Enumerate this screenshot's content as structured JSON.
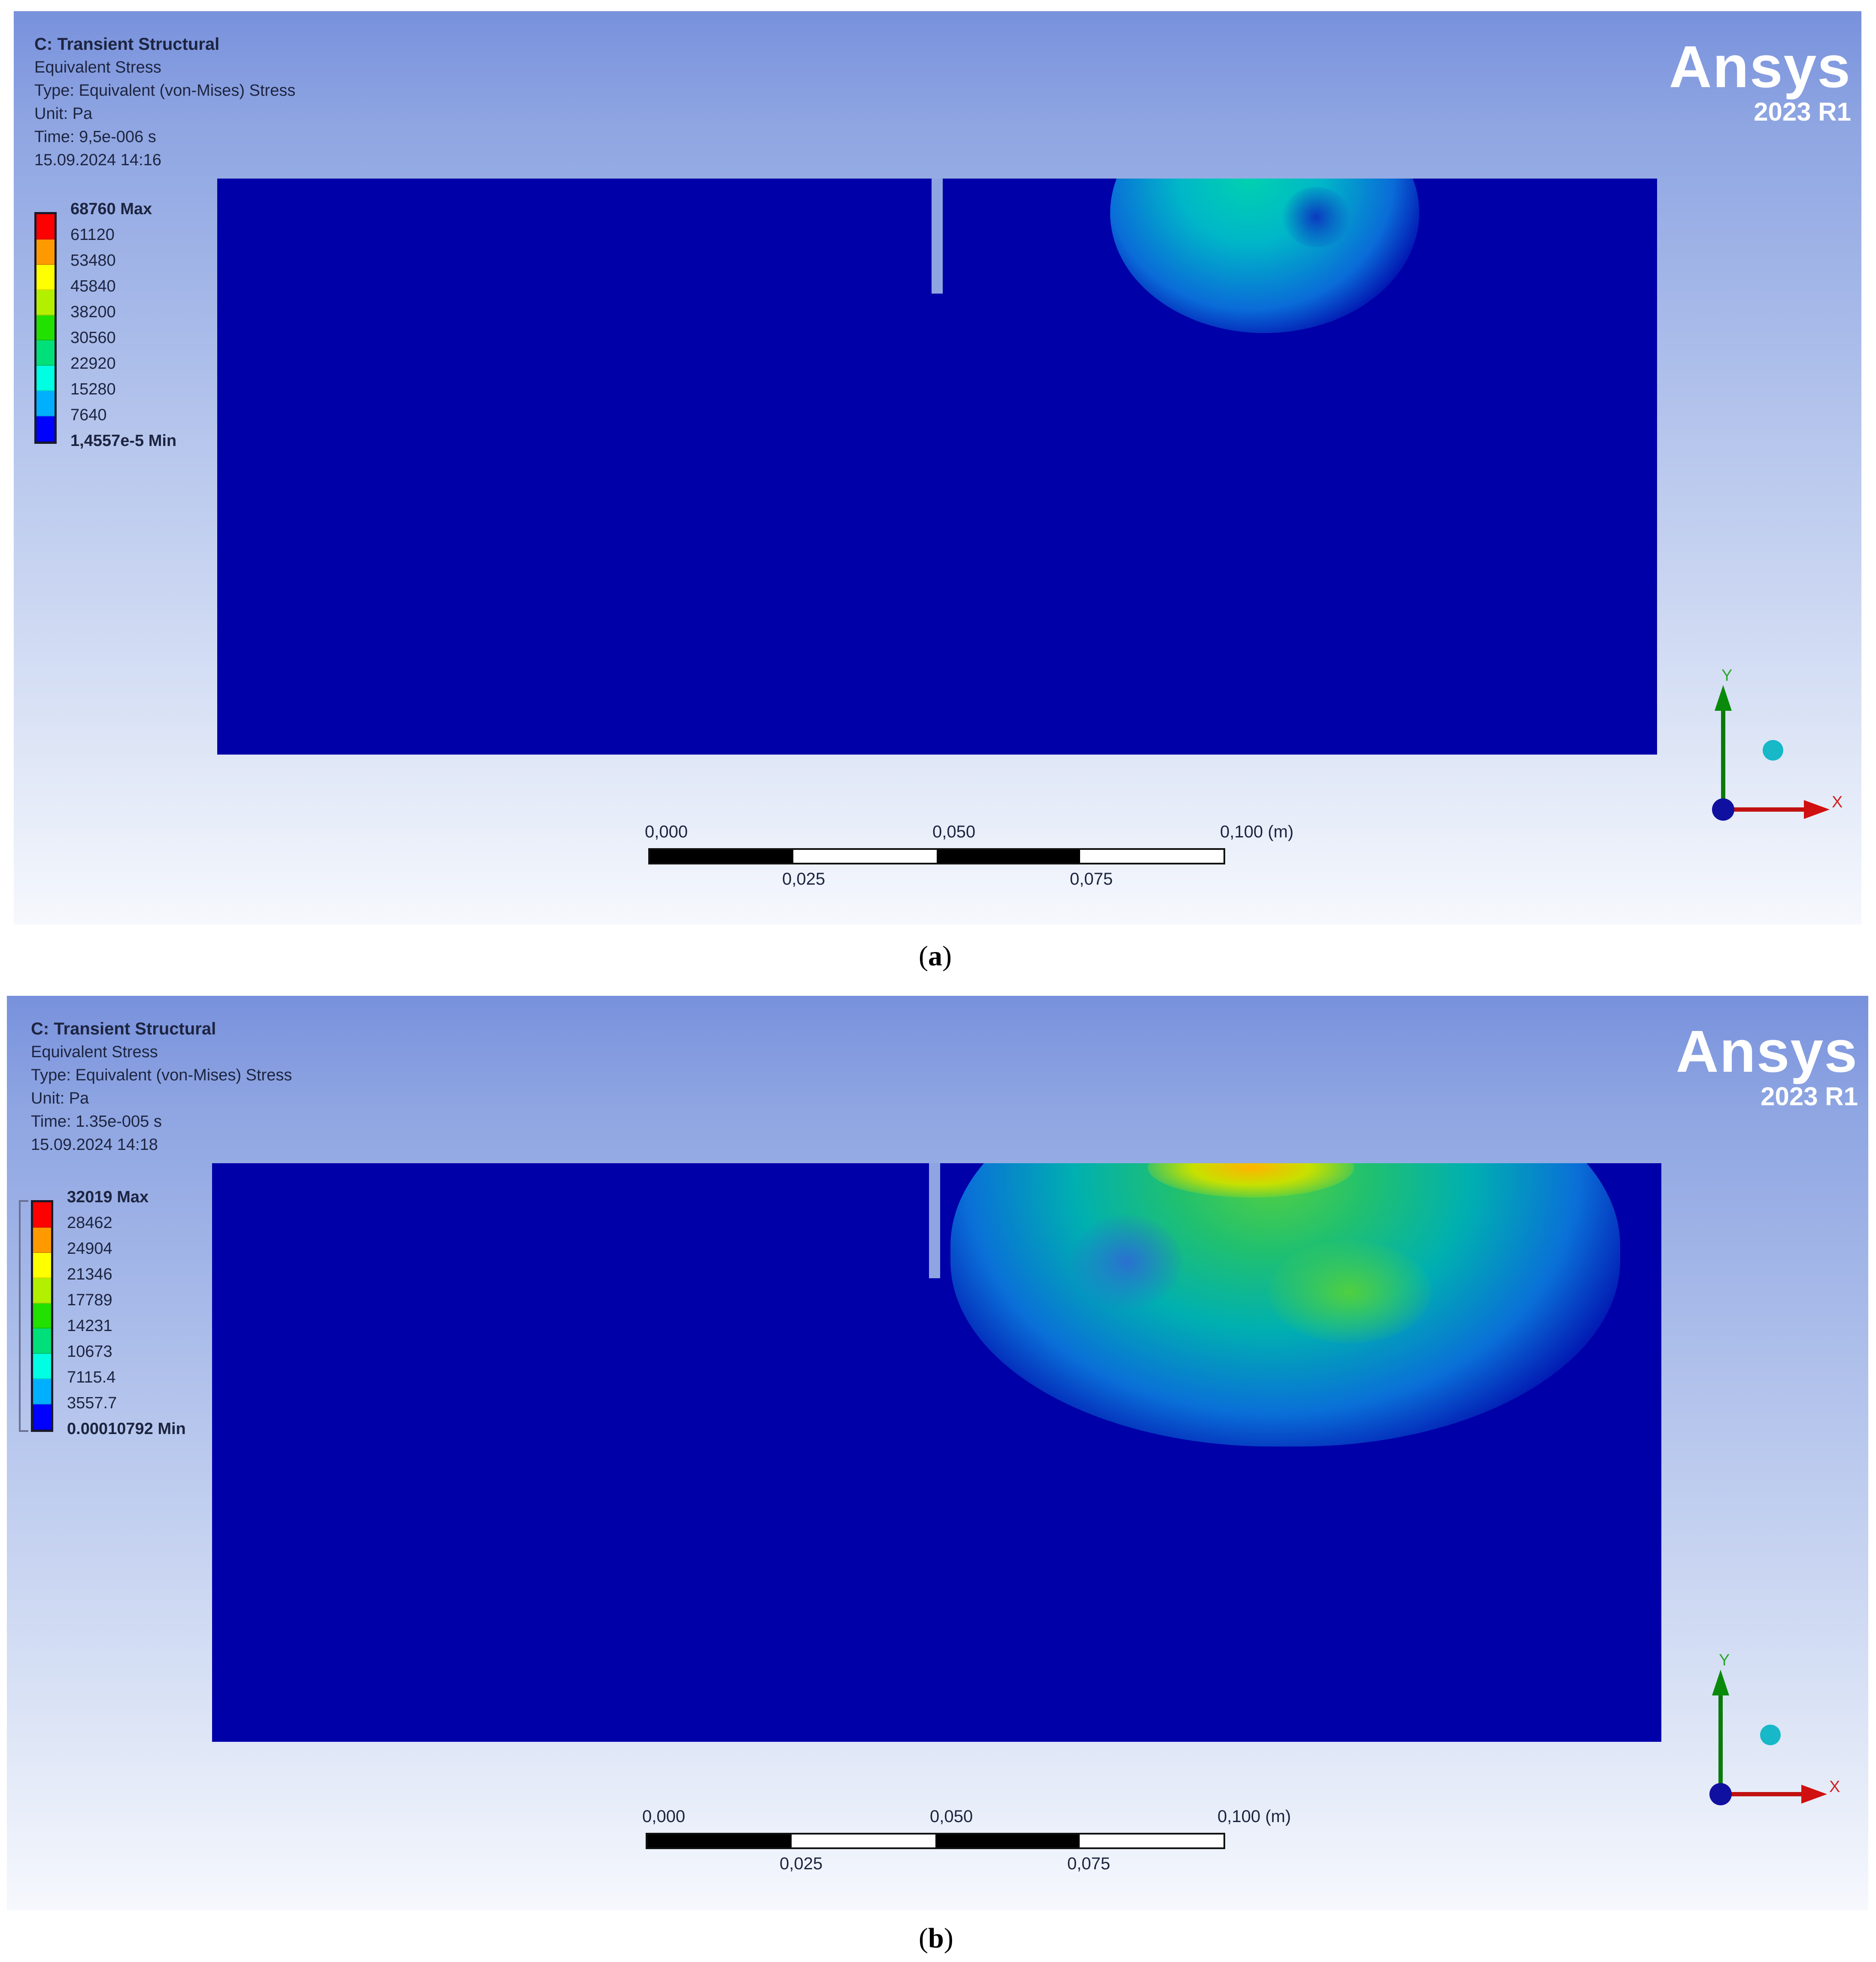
{
  "panels": [
    {
      "caption_letter": "a",
      "info": {
        "title": "C: Transient Structural",
        "result": "Equivalent Stress",
        "type": "Type: Equivalent (von-Mises) Stress",
        "unit": "Unit: Pa",
        "time": "Time: 9,5e-006 s",
        "date": "15.09.2024 14:16"
      },
      "legend": [
        "68760 Max",
        "61120",
        "53480",
        "45840",
        "38200",
        "30560",
        "22920",
        "15280",
        "7640",
        "1,4557e-5 Min"
      ],
      "scale": {
        "t0": "0,000",
        "t1": "0,025",
        "t2": "0,050",
        "t3": "0,075",
        "t4": "0,100 (m)"
      },
      "triad": {
        "x": "X",
        "y": "Y"
      }
    },
    {
      "caption_letter": "b",
      "info": {
        "title": "C: Transient Structural",
        "result": "Equivalent Stress",
        "type": "Type: Equivalent (von-Mises) Stress",
        "unit": "Unit: Pa",
        "time": "Time: 1.35e-005 s",
        "date": "15.09.2024 14:18"
      },
      "legend": [
        "32019 Max",
        "28462",
        "24904",
        "21346",
        "17789",
        "14231",
        "10673",
        "7115.4",
        "3557.7",
        "0.00010792 Min"
      ],
      "scale": {
        "t0": "0,000",
        "t1": "0,025",
        "t2": "0,050",
        "t3": "0,075",
        "t4": "0,100 (m)"
      },
      "triad": {
        "x": "X",
        "y": "Y"
      }
    }
  ],
  "brand": {
    "logo": "Ansys",
    "version": "2023 R1"
  },
  "legend_colors": [
    "#ff0000",
    "#ff9900",
    "#ffff00",
    "#b2f000",
    "#22e000",
    "#00e07a",
    "#00ffe2",
    "#00b0ff",
    "#1450ff",
    "#0000ff"
  ]
}
